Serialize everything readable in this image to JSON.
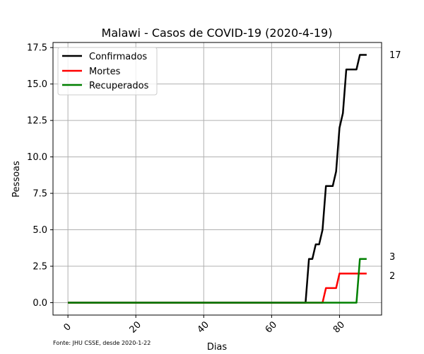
{
  "chart_data": {
    "type": "line",
    "title": "Malawi - Casos de COVID-19 (2020-4-19)",
    "xlabel": "Dias",
    "ylabel": "Pessoas",
    "xlim": [
      -4.4,
      92.4
    ],
    "ylim": [
      -0.85,
      17.85
    ],
    "xticks": [
      0,
      20,
      40,
      60,
      80
    ],
    "xtick_labels": [
      "0",
      "20",
      "40",
      "60",
      "80"
    ],
    "yticks": [
      0.0,
      2.5,
      5.0,
      7.5,
      10.0,
      12.5,
      15.0,
      17.5
    ],
    "ytick_labels": [
      "0.0",
      "2.5",
      "5.0",
      "7.5",
      "10.0",
      "12.5",
      "15.0",
      "17.5"
    ],
    "grid": true,
    "legend_position": "top-left",
    "series": [
      {
        "name": "Confirmados",
        "color": "#000000",
        "points": [
          [
            0,
            0
          ],
          [
            70,
            0
          ],
          [
            71,
            3
          ],
          [
            72,
            3
          ],
          [
            73,
            4
          ],
          [
            74,
            4
          ],
          [
            75,
            5
          ],
          [
            76,
            8
          ],
          [
            77,
            8
          ],
          [
            78,
            8
          ],
          [
            79,
            9
          ],
          [
            80,
            12
          ],
          [
            81,
            13
          ],
          [
            82,
            16
          ],
          [
            83,
            16
          ],
          [
            84,
            16
          ],
          [
            85,
            16
          ],
          [
            86,
            17
          ],
          [
            87,
            17
          ],
          [
            88,
            17
          ]
        ],
        "end_label": "17"
      },
      {
        "name": "Mortes",
        "color": "#ff0000",
        "points": [
          [
            0,
            0
          ],
          [
            75,
            0
          ],
          [
            76,
            1
          ],
          [
            77,
            1
          ],
          [
            78,
            1
          ],
          [
            79,
            1
          ],
          [
            80,
            2
          ],
          [
            81,
            2
          ],
          [
            82,
            2
          ],
          [
            83,
            2
          ],
          [
            84,
            2
          ],
          [
            85,
            2
          ],
          [
            86,
            2
          ],
          [
            87,
            2
          ],
          [
            88,
            2
          ]
        ],
        "end_label": "2"
      },
      {
        "name": "Recuperados",
        "color": "#008000",
        "points": [
          [
            0,
            0
          ],
          [
            85,
            0
          ],
          [
            86,
            3
          ],
          [
            87,
            3
          ],
          [
            88,
            3
          ]
        ],
        "end_label": "3"
      }
    ],
    "footnote": "Fonte: JHU CSSE, desde 2020-1-22"
  }
}
